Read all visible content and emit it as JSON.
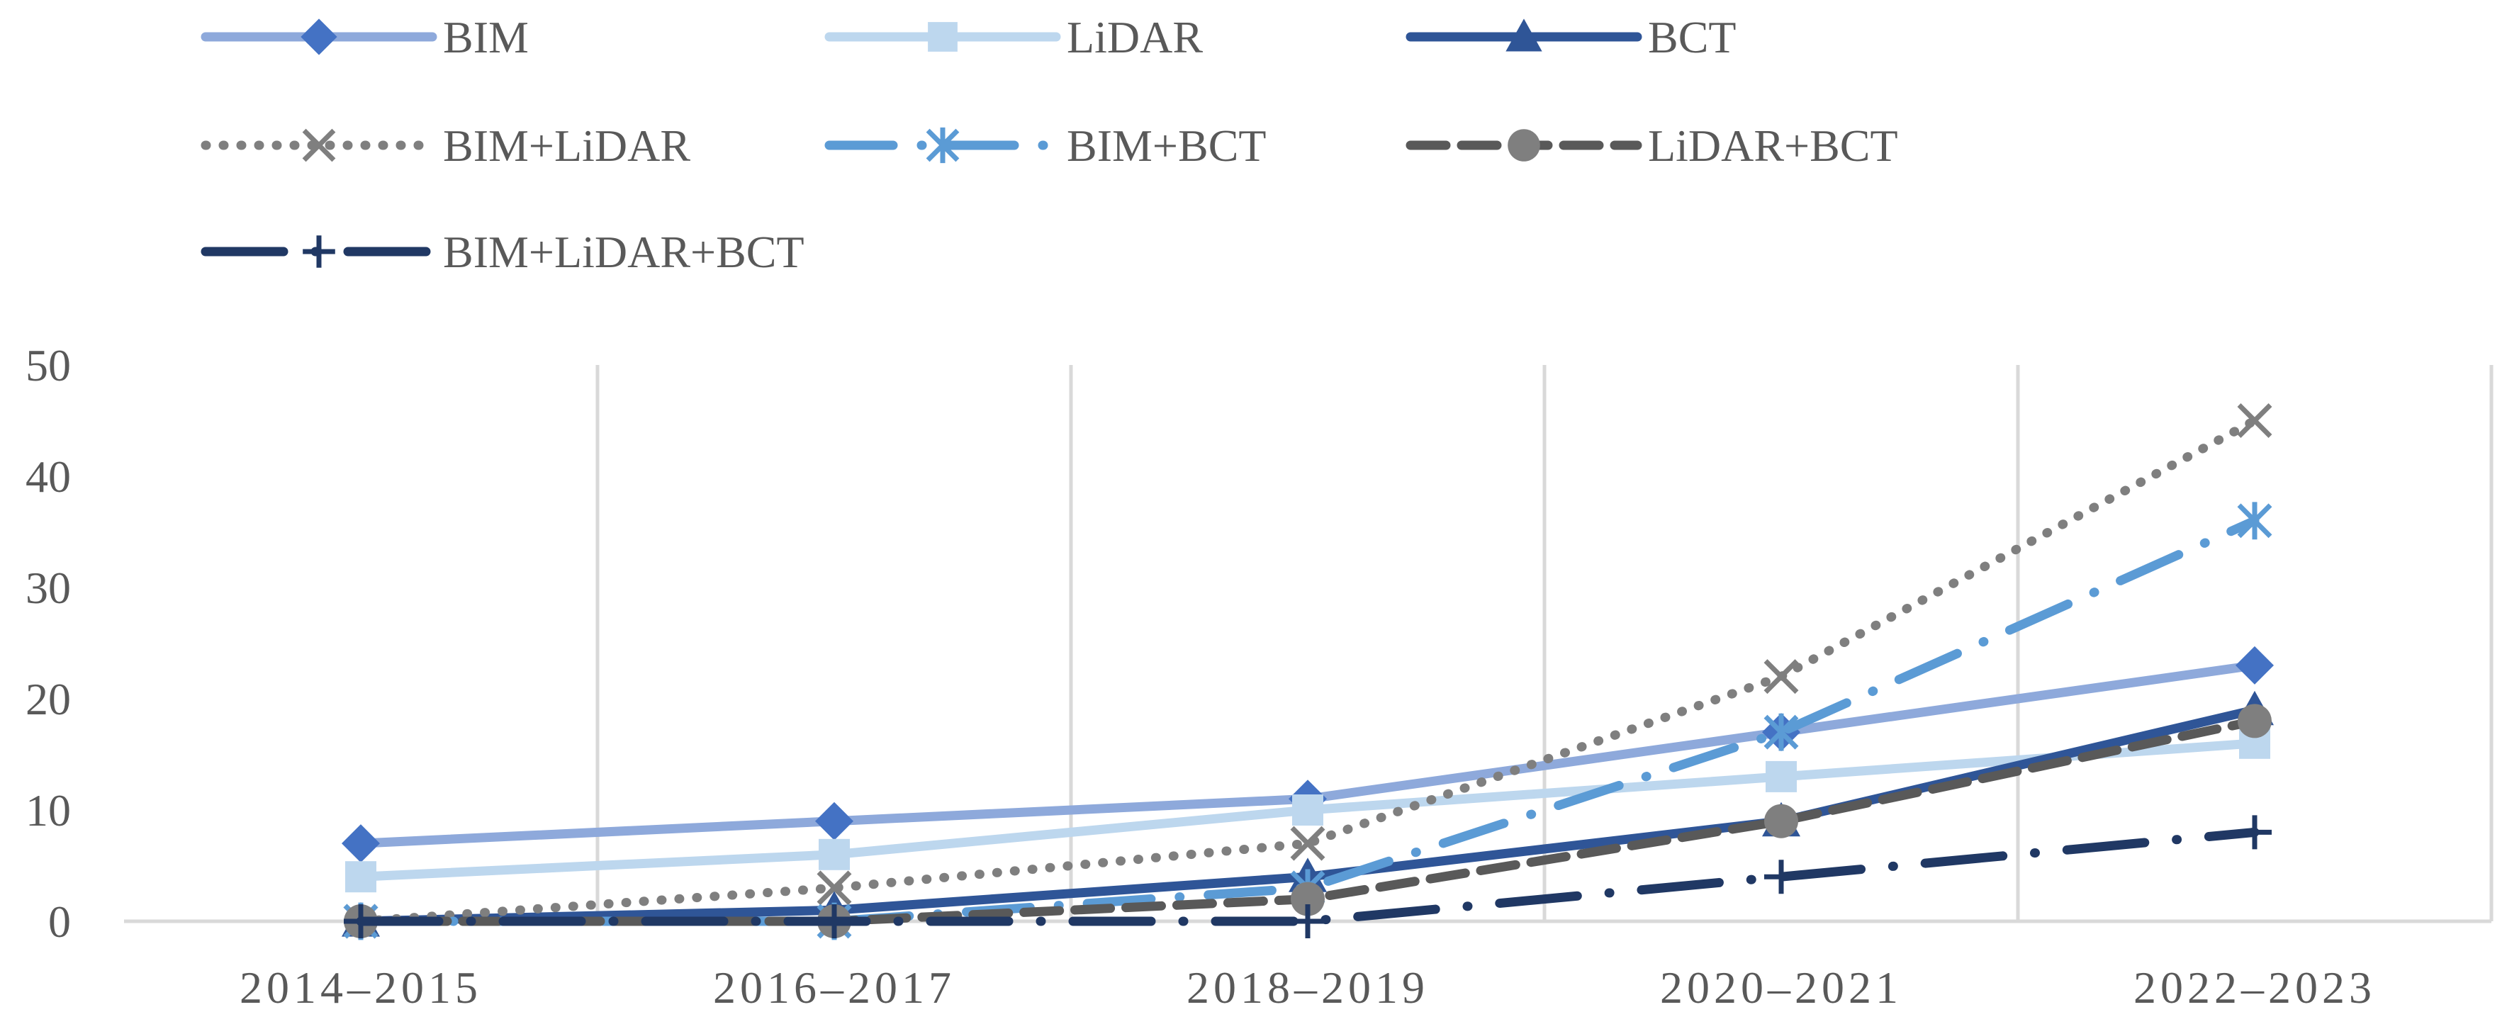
{
  "chart_data": {
    "type": "line",
    "title": "",
    "xlabel": "",
    "ylabel": "",
    "categories": [
      "2014–2015",
      "2016–2017",
      "2018–2019",
      "2020–2021",
      "2022–2023"
    ],
    "ylim": [
      0,
      50
    ],
    "yticks": [
      0,
      10,
      20,
      30,
      40,
      50
    ],
    "grid": "vertical",
    "legend_position": "top",
    "series": [
      {
        "name": "BIM",
        "values": [
          7,
          9,
          11,
          17,
          23
        ],
        "color": "#8EA9DB",
        "marker_color": "#4472C4",
        "marker": "diamond",
        "line": "solid"
      },
      {
        "name": "LiDAR",
        "values": [
          4,
          6,
          10,
          13,
          16
        ],
        "color": "#BDD7EE",
        "marker_color": "#BDD7EE",
        "marker": "square",
        "line": "solid"
      },
      {
        "name": "BCT",
        "values": [
          0,
          1,
          4,
          9,
          19
        ],
        "color": "#2F5597",
        "marker_color": "#2F5597",
        "marker": "triangle",
        "line": "solid"
      },
      {
        "name": "BIM+LiDAR",
        "values": [
          0,
          3,
          7,
          22,
          45
        ],
        "color": "#7F7F7F",
        "marker_color": "#7F7F7F",
        "marker": "x",
        "line": "dotted"
      },
      {
        "name": "BIM+BCT",
        "values": [
          0,
          0,
          3,
          17,
          36
        ],
        "color": "#5B9BD5",
        "marker_color": "#5B9BD5",
        "marker": "star",
        "line": "dashdot"
      },
      {
        "name": "LiDAR+BCT",
        "values": [
          0,
          0,
          2,
          9,
          18
        ],
        "color": "#595959",
        "marker_color": "#7F7F7F",
        "marker": "circle",
        "line": "dashed"
      },
      {
        "name": "BIM+LiDAR+BCT",
        "values": [
          0,
          0,
          0,
          4,
          8
        ],
        "color": "#203864",
        "marker_color": "#203864",
        "marker": "plus",
        "line": "longdashdot"
      }
    ]
  }
}
